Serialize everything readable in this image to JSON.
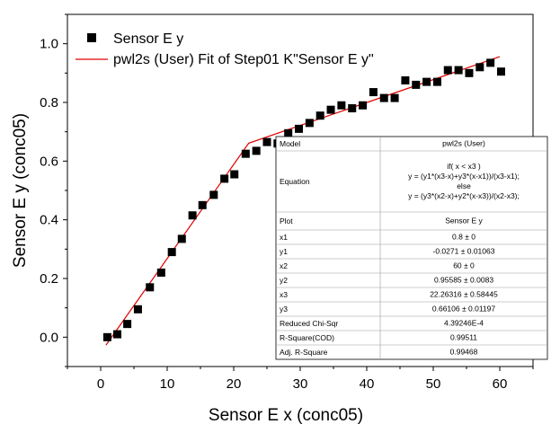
{
  "chart_data": {
    "type": "scatter",
    "xlabel": "Sensor E x (conc05)",
    "ylabel": "Sensor E y (conc05)",
    "xlim": [
      -5,
      65
    ],
    "ylim": [
      -0.1,
      1.1
    ],
    "x_ticks": [
      0,
      10,
      20,
      30,
      40,
      50,
      60
    ],
    "y_ticks": [
      0.0,
      0.2,
      0.4,
      0.6,
      0.8,
      1.0
    ],
    "x_tick_labels": [
      "0",
      "10",
      "20",
      "30",
      "40",
      "50",
      "60"
    ],
    "y_tick_labels": [
      "0.0",
      "0.2",
      "0.4",
      "0.6",
      "0.8",
      "1.0"
    ],
    "grid": false,
    "legend_position": "top-left",
    "series": [
      {
        "name": "Sensor E y",
        "type": "scatter",
        "marker": "square",
        "color": "#000000",
        "x": [
          1,
          2.5,
          4,
          5.6,
          7.4,
          9.1,
          10.7,
          12.2,
          13.8,
          15.3,
          17,
          18.6,
          20.1,
          21.8,
          23.4,
          25,
          26.6,
          28.2,
          29.8,
          31.4,
          33,
          34.6,
          36.2,
          37.8,
          39.4,
          41,
          42.6,
          44.2,
          45.8,
          47.4,
          49,
          50.6,
          52.2,
          53.8,
          55.4,
          57,
          58.6,
          60.2
        ],
        "y": [
          0.0,
          0.01,
          0.045,
          0.095,
          0.17,
          0.22,
          0.29,
          0.335,
          0.415,
          0.45,
          0.485,
          0.54,
          0.555,
          0.625,
          0.635,
          0.665,
          0.66,
          0.695,
          0.71,
          0.73,
          0.755,
          0.775,
          0.79,
          0.78,
          0.79,
          0.835,
          0.815,
          0.815,
          0.875,
          0.86,
          0.87,
          0.87,
          0.91,
          0.91,
          0.9,
          0.92,
          0.935,
          0.905
        ]
      },
      {
        "name": "pwl2s (User) Fit of Step01 K\"Sensor E y\"",
        "type": "line",
        "color": "#e00000",
        "x": [
          0.8,
          22.26316,
          60
        ],
        "y": [
          -0.0271,
          0.66106,
          0.95585
        ]
      }
    ],
    "fit_table": {
      "rows": [
        {
          "label": "Model",
          "value": [
            "pwl2s (User)"
          ]
        },
        {
          "label": "Equation",
          "value": [
            "if( x < x3 )",
            "y = (y1*(x3-x)+y3*(x-x1))/(x3-x1);",
            "else",
            "y = (y3*(x2-x)+y2*(x-x3))/(x2-x3);"
          ]
        },
        {
          "label": "Plot",
          "value": [
            "Sensor E y"
          ]
        },
        {
          "label": "x1",
          "value": [
            "0.8 ± 0"
          ]
        },
        {
          "label": "y1",
          "value": [
            "-0.0271 ± 0.01063"
          ]
        },
        {
          "label": "x2",
          "value": [
            "60 ± 0"
          ]
        },
        {
          "label": "y2",
          "value": [
            "0.95585 ± 0.0083"
          ]
        },
        {
          "label": "x3",
          "value": [
            "22.26316 ± 0.58445"
          ]
        },
        {
          "label": "y3",
          "value": [
            "0.66106 ± 0.01197"
          ]
        },
        {
          "label": "Reduced Chi-Sqr",
          "value": [
            "4.39246E-4"
          ]
        },
        {
          "label": "R-Square(COD)",
          "value": [
            "0.99511"
          ]
        },
        {
          "label": "Adj. R-Square",
          "value": [
            "0.99468"
          ]
        }
      ]
    }
  }
}
